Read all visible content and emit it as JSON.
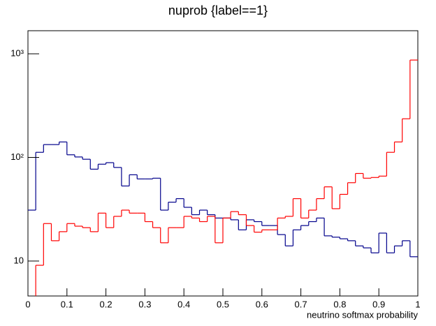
{
  "chart_data": {
    "type": "histogram",
    "title": "nuprob {label==1}",
    "x_label": "neutrino softmax probability",
    "bins": [
      0,
      0.02,
      0.04,
      0.06,
      0.08,
      0.1,
      0.12,
      0.14,
      0.16,
      0.18,
      0.2,
      0.22,
      0.24,
      0.26,
      0.28,
      0.3,
      0.32,
      0.34,
      0.36,
      0.38,
      0.4,
      0.42,
      0.44,
      0.46,
      0.48,
      0.5,
      0.52,
      0.54,
      0.56,
      0.58,
      0.6,
      0.62,
      0.64,
      0.66,
      0.68,
      0.7,
      0.72,
      0.74,
      0.76,
      0.78,
      0.8,
      0.82,
      0.84,
      0.86,
      0.88,
      0.9,
      0.92,
      0.94,
      0.96,
      0.98,
      1
    ],
    "series": [
      {
        "color": "#00008b",
        "values": [
          31,
          112,
          133,
          133,
          141,
          106,
          101,
          96,
          77,
          86,
          89,
          80,
          53,
          68,
          62,
          62,
          63,
          31,
          37,
          40,
          33,
          28,
          31,
          28,
          26,
          26,
          25,
          20,
          25,
          24,
          22,
          22,
          18,
          14,
          20,
          22,
          24,
          26,
          17.5,
          17,
          16.4,
          15.7,
          14,
          13.4,
          12,
          18.6,
          12,
          14,
          15.7,
          11
        ]
      },
      {
        "color": "#ff0000",
        "values": [
          4,
          9.1,
          23,
          15.7,
          19.2,
          23,
          21.7,
          21,
          19.2,
          29,
          21,
          27,
          31,
          29,
          29,
          24,
          21,
          15,
          21,
          21,
          27,
          26,
          24,
          27,
          15,
          26,
          30,
          28,
          22,
          19,
          20,
          20,
          26,
          27,
          40,
          26,
          31,
          40,
          52,
          32,
          44,
          57,
          70,
          63,
          64,
          66,
          112,
          141,
          236,
          870
        ]
      }
    ],
    "xlim": [
      0,
      1
    ],
    "xticks": [
      0,
      0.1,
      0.2,
      0.3,
      0.4,
      0.5,
      0.6,
      0.7,
      0.8,
      0.9,
      1
    ],
    "ylim": [
      4.6,
      1670
    ],
    "log_y": true,
    "yticks": [
      10,
      {
        "value": 100,
        "label": "10²"
      },
      {
        "value": 1000,
        "label": "10³"
      }
    ]
  }
}
